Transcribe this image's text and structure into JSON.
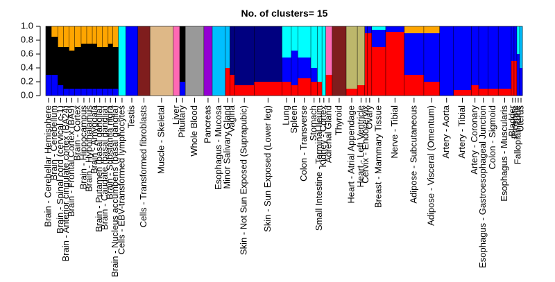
{
  "chart_data": {
    "type": "bar",
    "subtype": "stacked-structure-plot",
    "title": "No. of clusters= 15",
    "xlabel": "",
    "ylabel": "",
    "ylim": [
      0,
      1
    ],
    "y_ticks": [
      "0.0",
      "0.2",
      "0.4",
      "0.6",
      "0.8",
      "1.0"
    ],
    "grid": false,
    "legend": "none",
    "cluster_colors": [
      "#ff0000",
      "#0000ff",
      "#000000",
      "#ffa500",
      "#00ffff",
      "#556b2f",
      "#a52a2a",
      "#00bfff",
      "#ff69b4",
      "#999999",
      "#deb887",
      "#9400d3",
      "#000080",
      "#bdb76b",
      "#7f1d1d"
    ],
    "tissues": [
      {
        "label": "Brain - Cerebellar Hemisphere",
        "width": 1.2,
        "comp": {
          "1": 0.3,
          "2": 0.7
        }
      },
      {
        "label": "Brain - Cerebellum",
        "width": 1.4,
        "comp": {
          "1": 0.3,
          "2": 0.55,
          "3": 0.15
        }
      },
      {
        "label": "Brain - Spinal cord (cervical c-1)",
        "width": 1.2,
        "comp": {
          "1": 0.15,
          "2": 0.55,
          "3": 0.3
        }
      },
      {
        "label": "Brain - Anterior cingulate cortex (BA24)",
        "width": 1.2,
        "comp": {
          "1": 0.1,
          "2": 0.6,
          "3": 0.3
        }
      },
      {
        "label": "Brain - Frontal Cortex (BA9)",
        "width": 1.2,
        "comp": {
          "1": 0.1,
          "2": 0.55,
          "3": 0.35
        }
      },
      {
        "label": "Brain - Cortex",
        "width": 1.4,
        "comp": {
          "1": 0.1,
          "2": 0.6,
          "3": 0.3
        }
      },
      {
        "label": "Brain - Hippocampus",
        "width": 1.2,
        "comp": {
          "1": 0.1,
          "2": 0.65,
          "3": 0.25
        }
      },
      {
        "label": "Brain - Hypothalamus",
        "width": 1.2,
        "comp": {
          "1": 0.1,
          "2": 0.65,
          "3": 0.25
        }
      },
      {
        "label": "Brain - Amygdala",
        "width": 1.0,
        "comp": {
          "1": 0.1,
          "2": 0.65,
          "3": 0.25
        }
      },
      {
        "label": "Brain - Putamen (basal ganglia)",
        "width": 1.2,
        "comp": {
          "1": 0.1,
          "2": 0.6,
          "3": 0.3
        }
      },
      {
        "label": "Brain - Caudate (basal ganglia)",
        "width": 1.2,
        "comp": {
          "1": 0.1,
          "2": 0.6,
          "3": 0.3
        }
      },
      {
        "label": "Brain - Substantia nigra",
        "width": 1.0,
        "comp": {
          "1": 0.1,
          "2": 0.65,
          "3": 0.25
        }
      },
      {
        "label": "Brain - Nucleus accumbens (basal ganglia)",
        "width": 1.2,
        "comp": {
          "1": 0.1,
          "2": 0.6,
          "3": 0.3
        }
      },
      {
        "label": "Cells - EBV-transformed lymphocytes",
        "width": 1.6,
        "comp": {
          "4": 1.0
        }
      },
      {
        "label": "Testis",
        "width": 2.6,
        "comp": {
          "1": 1.0
        }
      },
      {
        "label": "Cells - Transformed fibroblasts",
        "width": 2.6,
        "comp": {
          "14": 1.0
        }
      },
      {
        "label": "Muscle - Skeletal",
        "width": 5.0,
        "comp": {
          "10": 1.0
        }
      },
      {
        "label": "Liver",
        "width": 1.4,
        "comp": {
          "8": 1.0
        }
      },
      {
        "label": "Pituitary",
        "width": 1.2,
        "comp": {
          "1": 0.2,
          "2": 0.8
        }
      },
      {
        "label": "Whole Blood",
        "width": 4.0,
        "comp": {
          "9": 1.0
        }
      },
      {
        "label": "Pancreas",
        "width": 1.8,
        "comp": {
          "11": 1.0
        }
      },
      {
        "label": "Esophagus - Mucosa",
        "width": 2.8,
        "comp": {
          "7": 1.0
        }
      },
      {
        "label": "Minor Salivary Gland",
        "width": 1.0,
        "comp": {
          "7": 0.6,
          "0": 0.4
        }
      },
      {
        "label": "Vagina",
        "width": 1.0,
        "comp": {
          "12": 0.7,
          "0": 0.3
        }
      },
      {
        "label": "Skin - Not Sun Exposed (Suprapubic)",
        "width": 4.2,
        "comp": {
          "12": 0.85,
          "0": 0.15
        }
      },
      {
        "label": "Skin - Sun Exposed (Lower leg)",
        "width": 6.0,
        "comp": {
          "12": 0.8,
          "0": 0.2
        }
      },
      {
        "label": "Lung",
        "width": 2.0,
        "comp": {
          "0": 0.2,
          "1": 0.35,
          "4": 0.45
        }
      },
      {
        "label": "Spleen",
        "width": 1.4,
        "comp": {
          "0": 0.15,
          "1": 0.5,
          "4": 0.35
        }
      },
      {
        "label": "Colon - Transverse",
        "width": 2.8,
        "comp": {
          "0": 0.25,
          "1": 0.3,
          "4": 0.45
        }
      },
      {
        "label": "Stomach",
        "width": 1.4,
        "comp": {
          "0": 0.2,
          "1": 0.2,
          "4": 0.6
        }
      },
      {
        "label": "Small Intestine - Terminal Ileum",
        "width": 1.0,
        "comp": {
          "0": 0.2,
          "4": 0.8
        }
      },
      {
        "label": "Kidney - Cortex",
        "width": 0.8,
        "comp": {
          "4": 1.0
        }
      },
      {
        "label": "Adrenal Gland",
        "width": 1.4,
        "comp": {
          "0": 0.3,
          "8": 0.7
        }
      },
      {
        "label": "Thyroid",
        "width": 3.0,
        "comp": {
          "14": 1.0
        }
      },
      {
        "label": "Heart - Atrial Appendage",
        "width": 2.4,
        "comp": {
          "13": 0.9,
          "0": 0.1
        }
      },
      {
        "label": "Heart - Left Ventricle",
        "width": 1.6,
        "comp": {
          "13": 0.85,
          "0": 0.15
        }
      },
      {
        "label": "Cervix - Endocervix",
        "width": 0.6,
        "comp": {
          "0": 0.9,
          "1": 0.1
        }
      },
      {
        "label": "Ovary",
        "width": 0.9,
        "comp": {
          "0": 0.9,
          "1": 0.1
        }
      },
      {
        "label": "Breast - Mammary Tissue",
        "width": 3.0,
        "comp": {
          "0": 0.7,
          "1": 0.25,
          "4": 0.05
        }
      },
      {
        "label": "Nerve - Tibial",
        "width": 4.0,
        "comp": {
          "0": 0.92,
          "1": 0.08
        }
      },
      {
        "label": "Adipose - Subcutaneous",
        "width": 4.2,
        "comp": {
          "0": 0.3,
          "1": 0.6,
          "3": 0.1
        }
      },
      {
        "label": "Adipose - Visceral (Omentum)",
        "width": 3.4,
        "comp": {
          "0": 0.2,
          "1": 0.7,
          "3": 0.1
        }
      },
      {
        "label": "Artery - Aorta",
        "width": 3.0,
        "comp": {
          "1": 1.0
        }
      },
      {
        "label": "Artery - Tibial",
        "width": 3.8,
        "comp": {
          "1": 0.92,
          "0": 0.08
        }
      },
      {
        "label": "Artery - Coronary",
        "width": 1.6,
        "comp": {
          "1": 0.85,
          "0": 0.15
        }
      },
      {
        "label": "Esophagus - Gastroesophageal Junction",
        "width": 2.0,
        "comp": {
          "1": 0.9,
          "0": 0.1
        }
      },
      {
        "label": "Colon - Sigmoid",
        "width": 2.2,
        "comp": {
          "1": 0.9,
          "0": 0.1
        }
      },
      {
        "label": "Esophagus - Muscularis",
        "width": 2.8,
        "comp": {
          "1": 0.9,
          "0": 0.1
        }
      },
      {
        "label": "Bladder",
        "width": 0.6,
        "comp": {
          "1": 0.5,
          "0": 0.5
        }
      },
      {
        "label": "Prostate",
        "width": 0.6,
        "comp": {
          "1": 0.5,
          "0": 0.5
        }
      },
      {
        "label": "Fallopian Tube",
        "width": 0.6,
        "comp": {
          "4": 0.4,
          "1": 0.6
        }
      },
      {
        "label": "Uterus",
        "width": 0.6,
        "comp": {
          "7": 0.6,
          "1": 0.4
        }
      }
    ]
  }
}
